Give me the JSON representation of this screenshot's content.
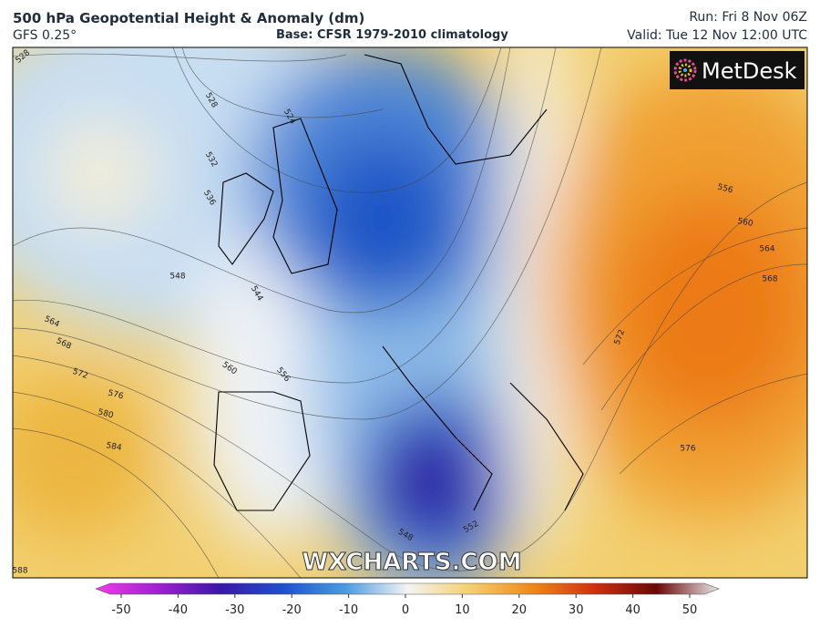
{
  "header": {
    "title": "500 hPa Geopotential Height & Anomaly (dm)",
    "model": "GFS 0.25°",
    "base": "Base: CFSR 1979-2010 climatology",
    "run": "Run: Fri 8 Nov 06Z",
    "valid": "Valid: Tue 12 Nov 12:00 UTC"
  },
  "logo": "MetDesk",
  "watermark": "WXCHARTS.COM",
  "contour_labels": [
    528,
    528,
    524,
    532,
    536,
    548,
    544,
    564,
    568,
    572,
    576,
    580,
    584,
    588,
    560,
    556,
    556,
    560,
    564,
    568,
    572,
    576,
    548,
    552
  ],
  "colorbar": {
    "range": [
      -50,
      50
    ],
    "ticks": [
      -50,
      -40,
      -30,
      -20,
      -10,
      0,
      10,
      20,
      30,
      40,
      50
    ]
  }
}
